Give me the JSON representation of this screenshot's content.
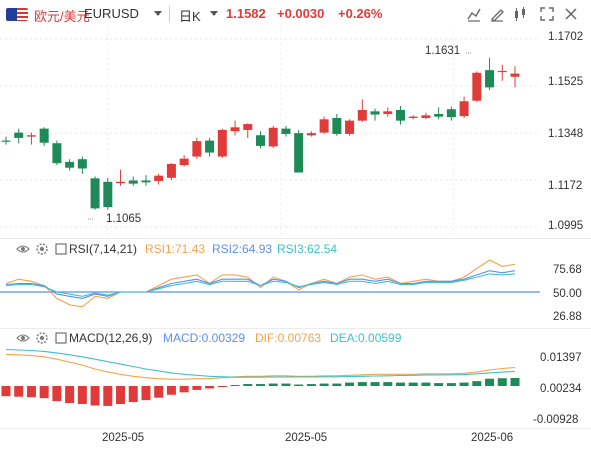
{
  "header": {
    "pair_name": "欧元/美元",
    "pair_code": "EURUSD",
    "period": "日K",
    "price": "1.1582",
    "change": "+0.0030",
    "change_pct": "+0.26%",
    "icons": [
      "line-style-icon",
      "draw-icon",
      "indicator-icon",
      "fullscreen-icon",
      "close-icon"
    ]
  },
  "main": {
    "y_ticks": [
      "1.1702",
      "1.1525",
      "1.1348",
      "1.1172",
      "1.0995"
    ],
    "high_label": "1.1631",
    "low_label": "1.1065"
  },
  "rsi": {
    "title": "RSI(7,14,21)",
    "rsi1": "RSI1:71.43",
    "rsi2": "RSI2:64.93",
    "rsi3": "RSI3:62.54",
    "y_ticks": [
      "75.68",
      "50.00",
      "26.88"
    ]
  },
  "macd": {
    "title": "MACD(12,26,9)",
    "macd": "MACD:0.00329",
    "dif": "DIF:0.00763",
    "dea": "DEA:0.00599",
    "y_ticks": [
      "0.01397",
      "0.00234",
      "-0.00928"
    ]
  },
  "x_axis": [
    "2025-05",
    "2025-05",
    "2025-06"
  ],
  "colors": {
    "up": "#e03b3b",
    "down": "#1e8a57",
    "rsi1": "#f5a34d",
    "rsi2": "#5b8ff2",
    "rsi3": "#3ec2c9",
    "baseline": "#5b8ff2"
  }
}
